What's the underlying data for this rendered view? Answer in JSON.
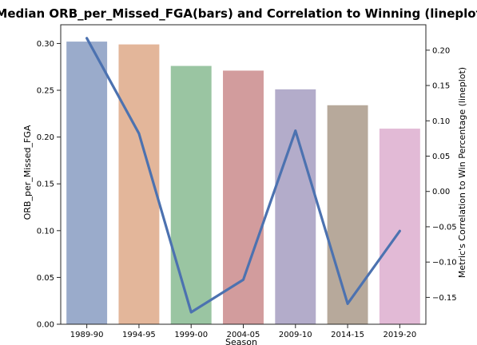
{
  "chart_data": {
    "type": "bar",
    "title": "Median ORB_per_Missed_FGA(bars) and Correlation to Winning (lineplot)",
    "xlabel": "Season",
    "ylabel": "ORB_per_Missed_FGA",
    "y2label": "Metric's Correlation to Win Percentage (lineplot)",
    "categories": [
      "1989-90",
      "1994-95",
      "1999-00",
      "2004-05",
      "2009-10",
      "2014-15",
      "2019-20"
    ],
    "bar_values": [
      0.302,
      0.299,
      0.276,
      0.271,
      0.251,
      0.234,
      0.209
    ],
    "bar_colors": [
      "#9aabcb",
      "#e3b69a",
      "#9ac5a2",
      "#d29c9d",
      "#b3acca",
      "#b7a99b",
      "#e2bad6"
    ],
    "line_values": [
      0.217,
      0.082,
      -0.171,
      -0.125,
      0.086,
      -0.159,
      -0.056
    ],
    "line_color": "#4c72b0",
    "ylim": [
      0,
      0.32
    ],
    "y2lim": [
      -0.188,
      0.236
    ],
    "yticks": [
      0.0,
      0.05,
      0.1,
      0.15,
      0.2,
      0.25,
      0.3
    ],
    "ytick_labels": [
      "0.00",
      "0.05",
      "0.10",
      "0.15",
      "0.20",
      "0.25",
      "0.30"
    ],
    "y2ticks": [
      -0.15,
      -0.1,
      -0.05,
      0.0,
      0.05,
      0.1,
      0.15,
      0.2
    ],
    "y2tick_labels": [
      "−0.15",
      "−0.10",
      "−0.05",
      "0.00",
      "0.05",
      "0.10",
      "0.15",
      "0.20"
    ],
    "grid": false
  }
}
